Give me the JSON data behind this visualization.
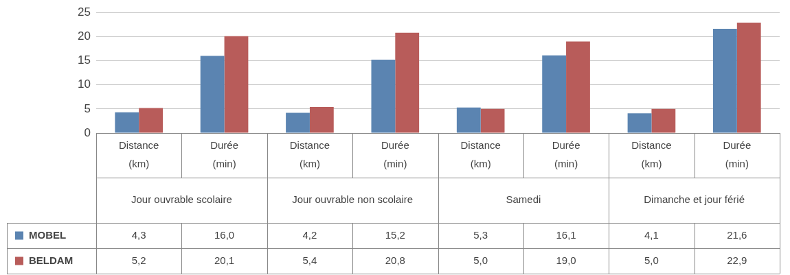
{
  "chart_data": {
    "type": "bar",
    "categories": [
      "Distance (km)",
      "Durée (min)",
      "Distance (km)",
      "Durée (min)",
      "Distance (km)",
      "Durée (min)",
      "Distance (km)",
      "Durée (min)"
    ],
    "series": [
      {
        "name": "MOBEL",
        "color": "#5b84b1",
        "values": [
          4.3,
          16.0,
          4.2,
          15.2,
          5.3,
          16.1,
          4.1,
          21.6
        ],
        "value_labels": [
          "4,3",
          "16,0",
          "4,2",
          "15,2",
          "5,3",
          "16,1",
          "4,1",
          "21,6"
        ]
      },
      {
        "name": "BELDAM",
        "color": "#b85c5a",
        "values": [
          5.2,
          20.1,
          5.4,
          20.8,
          5.0,
          19.0,
          5.0,
          22.9
        ],
        "value_labels": [
          "5,2",
          "20,1",
          "5,4",
          "20,8",
          "5,0",
          "19,0",
          "5,0",
          "22,9"
        ]
      }
    ],
    "annotations": [
      "Jour ouvrable scolaire",
      "Jour ouvrable non scolaire",
      "Samedi",
      "Dimanche et jour férié"
    ],
    "ylim": [
      0,
      25
    ],
    "yticks": [
      0,
      5,
      10,
      15,
      20,
      25
    ],
    "grid": "y",
    "legend": "bottom left"
  }
}
